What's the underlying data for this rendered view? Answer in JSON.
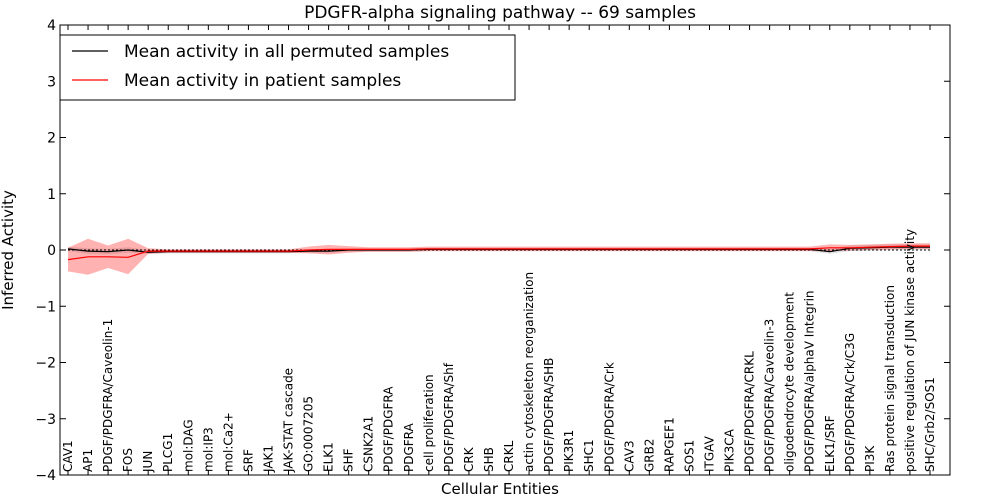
{
  "chart_data": {
    "type": "line",
    "title": "PDGFR-alpha signaling pathway -- 69 samples",
    "xlabel": "Cellular Entities",
    "ylabel": "Inferred Activity",
    "ylim": [
      -4,
      4
    ],
    "yticks": [
      -4,
      -3,
      -2,
      -1,
      0,
      1,
      2,
      3,
      4
    ],
    "ytick_labels": [
      "−4",
      "−3",
      "−2",
      "−1",
      "0",
      "1",
      "2",
      "3",
      "4"
    ],
    "legend_position": "top-left",
    "reference_line": 0,
    "categories": [
      "CAV1",
      "AP1",
      "PDGF/PDGFRA/Caveolin-1",
      "FOS",
      "JUN",
      "PLCG1",
      "mol:DAG",
      "mol:IP3",
      "mol:Ca2+",
      "SRF",
      "JAK1",
      "JAK-STAT cascade",
      "GO:0007205",
      "ELK1",
      "SHF",
      "CSNK2A1",
      "PDGF/PDGFRA",
      "PDGFRA",
      "cell proliferation",
      "PDGF/PDGFRA/Shf",
      "CRK",
      "SHB",
      "CRKL",
      "actin cytoskeleton reorganization",
      "PDGF/PDGFRA/SHB",
      "PIK3R1",
      "SHC1",
      "PDGF/PDGFRA/Crk",
      "CAV3",
      "GRB2",
      "RAPGEF1",
      "SOS1",
      "ITGAV",
      "PIK3CA",
      "PDGF/PDGFRA/CRKL",
      "PDGF/PDGFRA/Caveolin-3",
      "oligodendrocyte development",
      "PDGF/PDGFRA/alphaV Integrin",
      "ELK1/SRF",
      "PDGF/PDGFRA/Crk/C3G",
      "PI3K",
      "Ras protein signal transduction",
      "positive regulation of JUN kinase activity",
      "SHC/Grb2/SOS1"
    ],
    "series": [
      {
        "name": "Mean activity in all permuted samples",
        "color": "#000000",
        "values": [
          0.02,
          -0.02,
          -0.03,
          0.0,
          -0.04,
          -0.03,
          -0.03,
          -0.03,
          -0.03,
          -0.03,
          -0.03,
          -0.03,
          -0.02,
          -0.02,
          0.0,
          0.0,
          0.0,
          0.0,
          0.01,
          0.01,
          0.01,
          0.01,
          0.01,
          0.01,
          0.01,
          0.01,
          0.01,
          0.01,
          0.01,
          0.01,
          0.01,
          0.01,
          0.01,
          0.01,
          0.01,
          0.01,
          0.01,
          0.01,
          -0.03,
          0.03,
          0.04,
          0.05,
          0.05,
          0.05
        ],
        "band_lower": [
          -0.02,
          -0.07,
          -0.08,
          -0.05,
          -0.07,
          -0.06,
          -0.06,
          -0.06,
          -0.06,
          -0.06,
          -0.06,
          -0.06,
          -0.05,
          -0.05,
          -0.03,
          -0.03,
          -0.03,
          -0.03,
          -0.02,
          -0.02,
          -0.02,
          -0.02,
          -0.02,
          -0.02,
          -0.02,
          -0.02,
          -0.02,
          -0.02,
          -0.02,
          -0.02,
          -0.02,
          -0.02,
          -0.02,
          -0.02,
          -0.02,
          -0.02,
          -0.02,
          -0.02,
          -0.07,
          -0.02,
          -0.01,
          0.0,
          0.0,
          0.0
        ],
        "band_upper": [
          0.06,
          0.03,
          0.02,
          0.05,
          0.0,
          0.0,
          0.0,
          0.0,
          0.0,
          0.0,
          0.0,
          0.0,
          0.01,
          0.01,
          0.03,
          0.03,
          0.03,
          0.03,
          0.04,
          0.04,
          0.04,
          0.04,
          0.04,
          0.04,
          0.04,
          0.04,
          0.04,
          0.04,
          0.04,
          0.04,
          0.04,
          0.04,
          0.04,
          0.04,
          0.04,
          0.04,
          0.04,
          0.04,
          0.01,
          0.08,
          0.09,
          0.1,
          0.1,
          0.1
        ]
      },
      {
        "name": "Mean activity in patient samples",
        "color": "#ff0000",
        "values": [
          -0.17,
          -0.12,
          -0.12,
          -0.13,
          -0.02,
          -0.02,
          -0.02,
          -0.02,
          -0.02,
          -0.02,
          -0.02,
          -0.02,
          0.0,
          0.01,
          0.01,
          0.01,
          0.01,
          0.01,
          0.02,
          0.02,
          0.02,
          0.02,
          0.02,
          0.02,
          0.02,
          0.02,
          0.02,
          0.02,
          0.02,
          0.02,
          0.02,
          0.02,
          0.02,
          0.02,
          0.02,
          0.02,
          0.02,
          0.02,
          0.04,
          0.04,
          0.05,
          0.06,
          0.07,
          0.07
        ],
        "band_lower": [
          -0.38,
          -0.44,
          -0.32,
          -0.43,
          -0.07,
          -0.05,
          -0.05,
          -0.05,
          -0.05,
          -0.05,
          -0.05,
          -0.05,
          -0.06,
          -0.08,
          -0.05,
          -0.03,
          -0.03,
          -0.03,
          -0.02,
          -0.02,
          -0.02,
          -0.02,
          -0.02,
          -0.02,
          -0.02,
          -0.02,
          -0.02,
          -0.02,
          -0.02,
          -0.02,
          -0.02,
          -0.02,
          -0.02,
          -0.02,
          -0.02,
          -0.02,
          -0.02,
          -0.02,
          -0.02,
          -0.01,
          0.0,
          0.01,
          0.02,
          0.02
        ],
        "band_upper": [
          0.04,
          0.2,
          0.08,
          0.2,
          0.03,
          0.01,
          0.01,
          0.01,
          0.01,
          0.01,
          0.01,
          0.01,
          0.06,
          0.09,
          0.07,
          0.05,
          0.05,
          0.05,
          0.06,
          0.06,
          0.06,
          0.06,
          0.06,
          0.06,
          0.06,
          0.06,
          0.06,
          0.06,
          0.06,
          0.06,
          0.06,
          0.06,
          0.06,
          0.06,
          0.06,
          0.06,
          0.06,
          0.06,
          0.1,
          0.09,
          0.1,
          0.11,
          0.12,
          0.12
        ]
      }
    ]
  }
}
